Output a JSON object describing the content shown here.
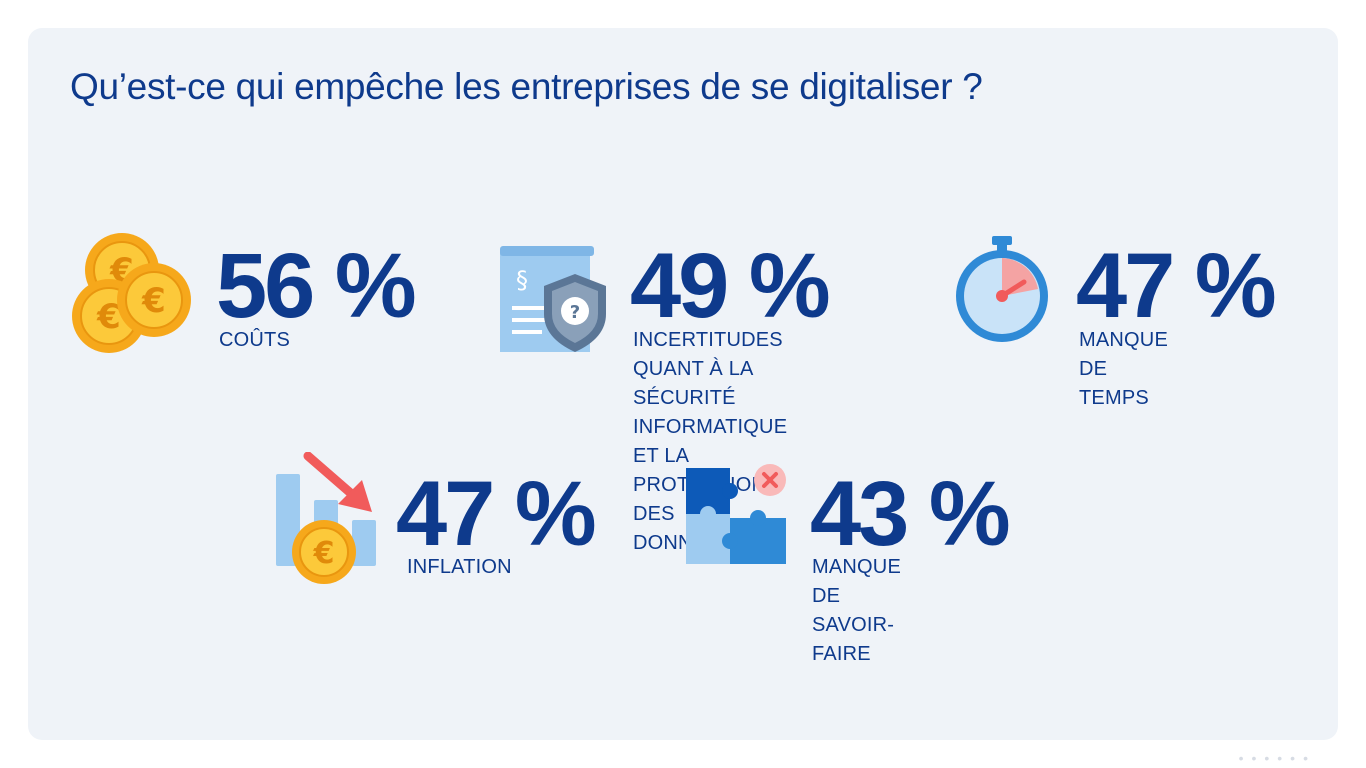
{
  "title": "Qu’est-ce qui empêche les entreprises de se digitaliser ?",
  "colors": {
    "panel": "#eff3f8",
    "navy": "#0e3a8c",
    "gold": "#f6b21b",
    "light_blue": "#9ecbf0",
    "mid_blue": "#2f8ad6",
    "dark_blue": "#0d5ab8",
    "red": "#f15b5b"
  },
  "stats": [
    {
      "value": "56 %",
      "label": "COÛTS",
      "icon": "euro-coins-icon"
    },
    {
      "value": "49 %",
      "label": "INCERTITUDES QUANT À LA\nSÉCURITÉ INFORMATIQUE\nET LA PROTECTION DES\nDONNÉES",
      "icon": "document-shield-icon"
    },
    {
      "value": "47 %",
      "label": "MANQUE DE TEMPS",
      "icon": "stopwatch-icon"
    },
    {
      "value": "47 %",
      "label": "INFLATION",
      "icon": "declining-chart-coin-icon"
    },
    {
      "value": "43 %",
      "label": "MANQUE DE\nSAVOIR-FAIRE",
      "icon": "puzzle-pieces-icon"
    }
  ]
}
